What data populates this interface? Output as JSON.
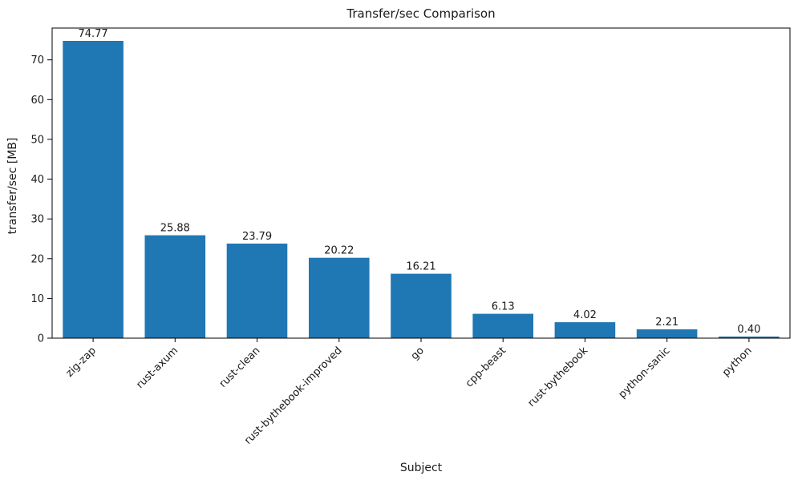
{
  "chart_data": {
    "type": "bar",
    "title": "Transfer/sec Comparison",
    "xlabel": "Subject",
    "ylabel": "transfer/sec [MB]",
    "categories": [
      "zig-zap",
      "rust-axum",
      "rust-clean",
      "rust-bythebook-improved",
      "go",
      "cpp-beast",
      "rust-bythebook",
      "python-sanic",
      "python"
    ],
    "values": [
      74.77,
      25.88,
      23.79,
      20.22,
      16.21,
      6.13,
      4.02,
      2.21,
      0.4
    ],
    "value_labels": [
      "74.77",
      "25.88",
      "23.79",
      "20.22",
      "16.21",
      "6.13",
      "4.02",
      "2.21",
      "0.40"
    ],
    "yticks": [
      0,
      10,
      20,
      30,
      40,
      50,
      60,
      70
    ],
    "ylim": [
      0,
      78
    ],
    "grid": false,
    "legend": null,
    "x_tick_rotation_deg": 45,
    "bar_color": "#1f77b4",
    "axis_color": "#000000",
    "text_color": "#1a1a1a",
    "background_color": "#ffffff"
  }
}
